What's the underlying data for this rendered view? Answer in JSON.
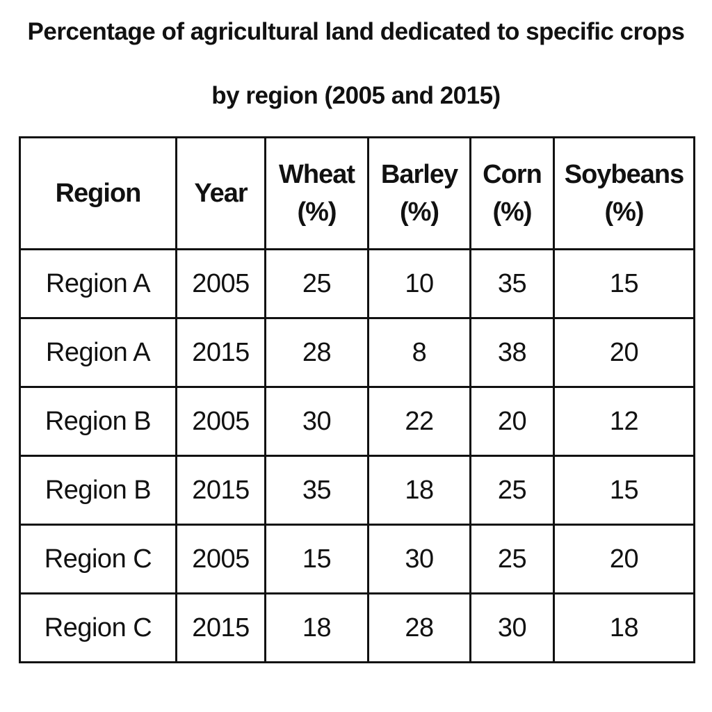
{
  "title": "Percentage of agricultural land dedicated to specific crops by region (2005 and 2015)",
  "table": {
    "headers": [
      "Region",
      "Year",
      "Wheat (%)",
      "Barley (%)",
      "Corn (%)",
      "Soybeans (%)"
    ],
    "rows": [
      [
        "Region A",
        2005,
        25,
        10,
        35,
        15
      ],
      [
        "Region A",
        2015,
        28,
        8,
        38,
        20
      ],
      [
        "Region B",
        2005,
        30,
        22,
        20,
        12
      ],
      [
        "Region B",
        2015,
        35,
        18,
        25,
        15
      ],
      [
        "Region C",
        2005,
        15,
        30,
        25,
        20
      ],
      [
        "Region C",
        2015,
        18,
        28,
        30,
        18
      ]
    ]
  }
}
